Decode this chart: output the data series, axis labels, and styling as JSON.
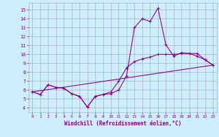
{
  "title": "",
  "xlabel": "Windchill (Refroidissement éolien,°C)",
  "bg_color": "#cceeff",
  "grid_color": "#aaaacc",
  "line_color": "#880088",
  "x_ticks": [
    0,
    1,
    2,
    3,
    4,
    5,
    6,
    7,
    8,
    9,
    10,
    11,
    12,
    13,
    14,
    15,
    16,
    17,
    18,
    19,
    20,
    21,
    22,
    23
  ],
  "y_ticks": [
    4,
    5,
    6,
    7,
    8,
    9,
    10,
    11,
    12,
    13,
    14,
    15
  ],
  "ylim": [
    3.5,
    15.8
  ],
  "xlim": [
    -0.5,
    23.5
  ],
  "line1_x": [
    0,
    1,
    2,
    3,
    4,
    5,
    6,
    7,
    8,
    9,
    10,
    11,
    12,
    13,
    14,
    15,
    16,
    17,
    18,
    19,
    20,
    21,
    22,
    23
  ],
  "line1_y": [
    5.8,
    5.5,
    6.6,
    6.3,
    6.2,
    5.6,
    5.3,
    4.1,
    5.3,
    5.5,
    5.6,
    6.0,
    7.6,
    13.0,
    14.0,
    13.7,
    15.2,
    11.1,
    9.8,
    10.2,
    10.1,
    10.1,
    9.4,
    8.8
  ],
  "line2_x": [
    0,
    1,
    2,
    3,
    4,
    5,
    6,
    7,
    8,
    9,
    10,
    11,
    12,
    13,
    14,
    15,
    16,
    17,
    18,
    19,
    20,
    21,
    22,
    23
  ],
  "line2_y": [
    5.8,
    5.5,
    6.6,
    6.3,
    6.2,
    5.6,
    5.3,
    4.1,
    5.3,
    5.5,
    5.8,
    7.0,
    8.5,
    9.2,
    9.5,
    9.7,
    10.0,
    10.0,
    10.0,
    10.1,
    10.1,
    9.8,
    9.4,
    8.8
  ],
  "line3_x": [
    0,
    23
  ],
  "line3_y": [
    5.8,
    8.8
  ]
}
